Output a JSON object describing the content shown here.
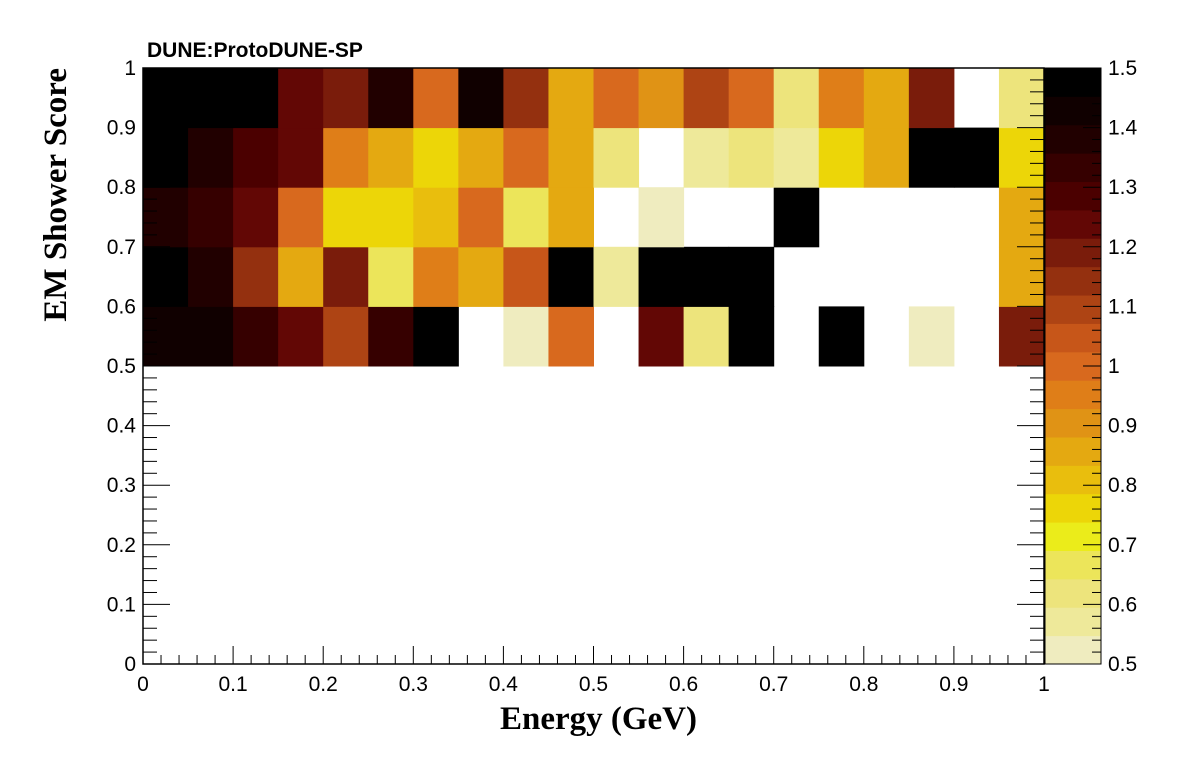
{
  "header": {
    "label": "DUNE:ProtoDUNE-SP"
  },
  "chart_data": {
    "type": "heatmap",
    "title": "",
    "xlabel": "Energy (GeV)",
    "ylabel": "EM Shower Score",
    "xlim": [
      0,
      1
    ],
    "ylim": [
      0,
      1
    ],
    "x_bin_edges": [
      0,
      0.05,
      0.1,
      0.15,
      0.2,
      0.25,
      0.3,
      0.35,
      0.4,
      0.45,
      0.5,
      0.55,
      0.6,
      0.65,
      0.7,
      0.75,
      0.8,
      0.85,
      0.9,
      0.95,
      1.0
    ],
    "y_bin_edges": [
      0.5,
      0.6,
      0.7,
      0.8,
      0.9,
      1.0
    ],
    "x_ticks": [
      {
        "value": 0,
        "label": "0"
      },
      {
        "value": 0.1,
        "label": "0.1"
      },
      {
        "value": 0.2,
        "label": "0.2"
      },
      {
        "value": 0.3,
        "label": "0.3"
      },
      {
        "value": 0.4,
        "label": "0.4"
      },
      {
        "value": 0.5,
        "label": "0.5"
      },
      {
        "value": 0.6,
        "label": "0.6"
      },
      {
        "value": 0.7,
        "label": "0.7"
      },
      {
        "value": 0.8,
        "label": "0.8"
      },
      {
        "value": 0.9,
        "label": "0.9"
      },
      {
        "value": 1,
        "label": "1"
      }
    ],
    "y_ticks": [
      {
        "value": 0,
        "label": "0"
      },
      {
        "value": 0.1,
        "label": "0.1"
      },
      {
        "value": 0.2,
        "label": "0.2"
      },
      {
        "value": 0.3,
        "label": "0.3"
      },
      {
        "value": 0.4,
        "label": "0.4"
      },
      {
        "value": 0.5,
        "label": "0.5"
      },
      {
        "value": 0.6,
        "label": "0.6"
      },
      {
        "value": 0.7,
        "label": "0.7"
      },
      {
        "value": 0.8,
        "label": "0.8"
      },
      {
        "value": 0.9,
        "label": "0.9"
      },
      {
        "value": 1,
        "label": "1"
      }
    ],
    "z_range": [
      0.5,
      1.5
    ],
    "z_ticks": [
      {
        "value": 0.5,
        "label": "0.5"
      },
      {
        "value": 0.6,
        "label": "0.6"
      },
      {
        "value": 0.7,
        "label": "0.7"
      },
      {
        "value": 0.8,
        "label": "0.8"
      },
      {
        "value": 0.9,
        "label": "0.9"
      },
      {
        "value": 1.0,
        "label": "1"
      },
      {
        "value": 1.1,
        "label": "1.1"
      },
      {
        "value": 1.2,
        "label": "1.2"
      },
      {
        "value": 1.3,
        "label": "1.3"
      },
      {
        "value": 1.4,
        "label": "1.4"
      },
      {
        "value": 1.5,
        "label": "1.5"
      }
    ],
    "palette": [
      "#efecbf",
      "#eee99a",
      "#ede47c",
      "#ece55a",
      "#ebec1a",
      "#ecd608",
      "#e9be0d",
      "#e4a911",
      "#e09315",
      "#df7e18",
      "#d8691e",
      "#c75619",
      "#ae4414",
      "#94300f",
      "#7a1c0b",
      "#620705",
      "#4b0000",
      "#360000",
      "#210000",
      "#100000",
      "#000000"
    ],
    "empty_color": "#ffffff",
    "cells_note": "rows from y=0.5-0.6 upward; each row lists 20 x-bins from 0 to 1; null = empty bin",
    "cells": [
      [
        1.45,
        1.42,
        1.32,
        1.25,
        1.08,
        1.35,
        1.5,
        null,
        0.52,
        1.0,
        null,
        1.25,
        0.62,
        1.5,
        null,
        1.5,
        null,
        0.5,
        null,
        1.2
      ],
      [
        1.5,
        1.37,
        1.12,
        0.87,
        1.2,
        0.68,
        0.95,
        0.87,
        1.05,
        1.5,
        0.55,
        1.5,
        1.5,
        1.5,
        null,
        null,
        null,
        null,
        null,
        0.88
      ],
      [
        1.38,
        1.35,
        1.25,
        0.98,
        0.78,
        0.78,
        0.83,
        1.0,
        0.68,
        0.84,
        null,
        0.5,
        null,
        null,
        1.5,
        null,
        null,
        null,
        null,
        0.88
      ],
      [
        1.5,
        1.4,
        1.3,
        1.25,
        0.93,
        0.86,
        0.78,
        0.86,
        0.99,
        0.84,
        0.62,
        null,
        0.56,
        0.6,
        0.56,
        0.78,
        0.87,
        1.5,
        1.5,
        0.78
      ],
      [
        1.5,
        1.5,
        1.5,
        1.25,
        1.18,
        1.38,
        1.02,
        1.45,
        1.15,
        0.86,
        0.98,
        0.92,
        1.08,
        0.98,
        0.63,
        0.93,
        0.86,
        1.2,
        null,
        0.6
      ]
    ]
  }
}
